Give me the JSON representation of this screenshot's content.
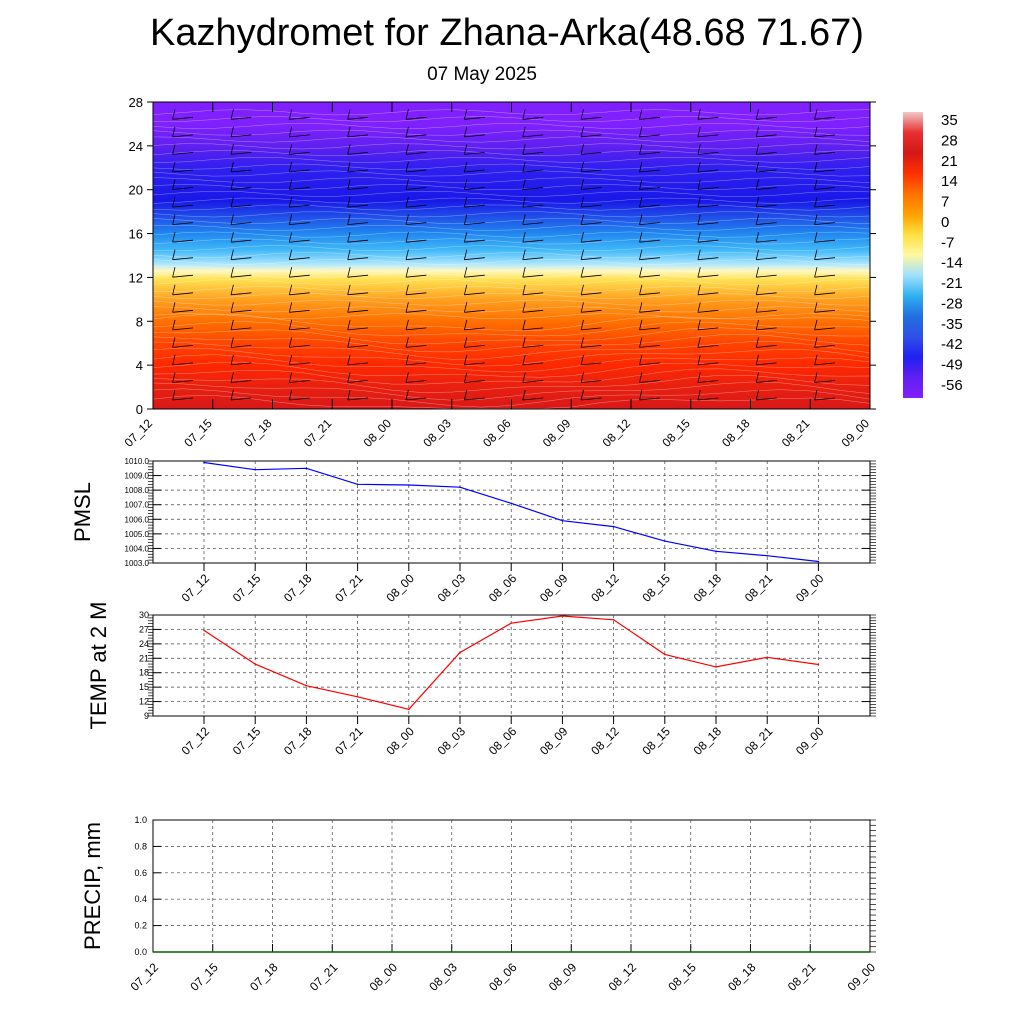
{
  "header": {
    "title": "Kazhydromet for Zhana-Arka(48.68 71.67)",
    "subtitle": "07 May 2025"
  },
  "chart_data": [
    {
      "type": "heatmap",
      "x_ticks": [
        "07_12",
        "07_15",
        "07_18",
        "07_21",
        "08_00",
        "08_03",
        "08_06",
        "08_09",
        "08_12",
        "08_15",
        "08_18",
        "08_21",
        "09_00"
      ],
      "y_ticks": [
        0,
        4,
        8,
        12,
        16,
        20,
        24,
        28
      ],
      "ylim": [
        0,
        28
      ],
      "colorbar_labels": [
        "35",
        "28",
        "21",
        "14",
        "7",
        "0",
        "-7",
        "-14",
        "-21",
        "-28",
        "-35",
        "-42",
        "-49",
        "-56"
      ],
      "colorbar_colors": [
        "#f0c8c8",
        "#e83030",
        "#d41818",
        "#ff3000",
        "#ff7000",
        "#ffa000",
        "#ffe040",
        "#fff8a0",
        "#a0e0ff",
        "#30b0f0",
        "#2070e0",
        "#3050e8",
        "#2020f0",
        "#6020f0",
        "#8020ff"
      ],
      "colors": {
        "rows": [
          {
            "h": 0,
            "c": "#d81818"
          },
          {
            "h": 2,
            "c": "#e82010"
          },
          {
            "h": 4,
            "c": "#ff2800"
          },
          {
            "h": 6,
            "c": "#ff4400"
          },
          {
            "h": 8,
            "c": "#ff7000"
          },
          {
            "h": 10,
            "c": "#ffa020"
          },
          {
            "h": 11.8,
            "c": "#ffe050"
          },
          {
            "h": 12.6,
            "c": "#fff8c0"
          },
          {
            "h": 13.2,
            "c": "#b0e8ff"
          },
          {
            "h": 14.5,
            "c": "#40b8f8"
          },
          {
            "h": 16,
            "c": "#2088f0"
          },
          {
            "h": 17.5,
            "c": "#2050e8"
          },
          {
            "h": 19,
            "c": "#1818e8"
          },
          {
            "h": 22,
            "c": "#3020f0"
          },
          {
            "h": 24,
            "c": "#6020f0"
          },
          {
            "h": 26,
            "c": "#8020ff"
          },
          {
            "h": 28,
            "c": "#8020ff"
          }
        ]
      }
    },
    {
      "type": "line",
      "ylabel": "PMSL",
      "x": [
        "07_12",
        "07_15",
        "07_18",
        "07_21",
        "08_00",
        "08_03",
        "08_06",
        "08_09",
        "08_12",
        "08_15",
        "08_18",
        "08_21",
        "09_00"
      ],
      "y_ticks": [
        "1003.0",
        "1004.0",
        "1005.0",
        "1006.0",
        "1007.0",
        "1008.0",
        "1009.0",
        "1010.0"
      ],
      "ylim": [
        1003,
        1010
      ],
      "series": [
        {
          "values": [
            1009.9,
            1009.4,
            1009.5,
            1008.4,
            1008.35,
            1008.2,
            1007.1,
            1005.9,
            1005.5,
            1004.5,
            1003.8,
            1003.5,
            1003.1
          ],
          "color": "#0000ff"
        }
      ]
    },
    {
      "type": "line",
      "ylabel": "TEMP at 2 M",
      "x": [
        "07_12",
        "07_15",
        "07_18",
        "07_21",
        "08_00",
        "08_03",
        "08_06",
        "08_09",
        "08_12",
        "08_15",
        "08_18",
        "08_21",
        "09_00"
      ],
      "y_ticks": [
        "9",
        "12",
        "15",
        "18",
        "21",
        "24",
        "27",
        "30"
      ],
      "ylim": [
        9,
        30
      ],
      "series": [
        {
          "values": [
            26.8,
            19.8,
            15.3,
            13.0,
            10.4,
            22.2,
            28.3,
            29.8,
            29.0,
            21.8,
            19.2,
            21.2,
            19.7
          ],
          "color": "#ff0000"
        }
      ]
    },
    {
      "type": "line",
      "ylabel": "PRECIP, mm",
      "x": [
        "07_12",
        "07_15",
        "07_18",
        "07_21",
        "08_00",
        "08_03",
        "08_06",
        "08_09",
        "08_12",
        "08_15",
        "08_18",
        "08_21",
        "09_00"
      ],
      "y_ticks": [
        "0.0",
        "0.2",
        "0.4",
        "0.6",
        "0.8",
        "1.0"
      ],
      "ylim": [
        0,
        1
      ],
      "series": [
        {
          "values": [
            0,
            0,
            0,
            0,
            0,
            0,
            0,
            0,
            0,
            0,
            0,
            0,
            0
          ],
          "color": "#006400"
        }
      ]
    }
  ]
}
